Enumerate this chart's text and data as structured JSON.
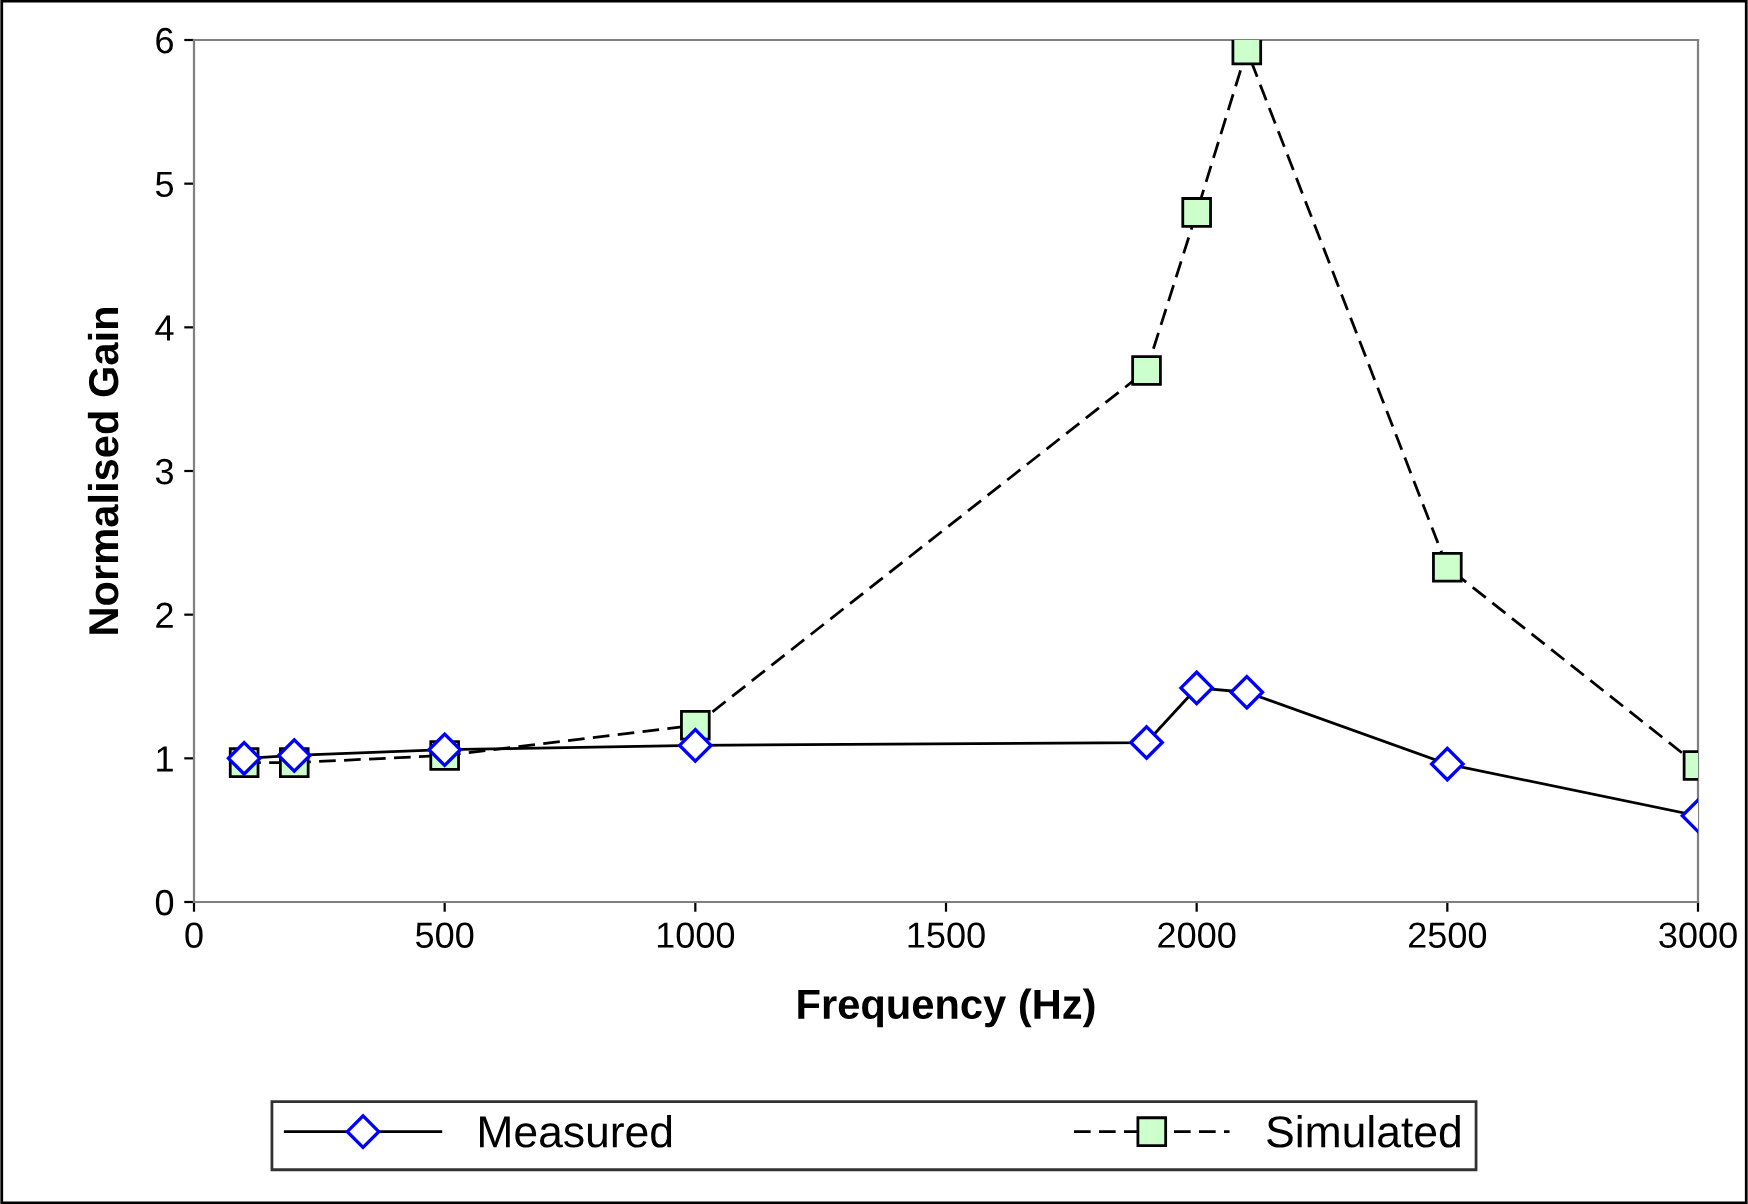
{
  "chart_data": {
    "type": "line",
    "xlabel": "Frequency (Hz)",
    "ylabel": "Normalised Gain",
    "xlim": [
      0,
      3000
    ],
    "xticks": [
      0,
      500,
      1000,
      1500,
      2000,
      2500,
      3000
    ],
    "ylim": [
      0,
      6
    ],
    "yticks": [
      0,
      1,
      2,
      3,
      4,
      5,
      6
    ],
    "grid": false,
    "legend": "bottom",
    "series": [
      {
        "name": "Measured",
        "color": "#0000ff",
        "marker": "diamond",
        "line_style": "solid",
        "x": [
          100,
          200,
          500,
          1000,
          1900,
          2000,
          2100,
          2500,
          3000
        ],
        "values": [
          1.0,
          1.02,
          1.06,
          1.09,
          1.11,
          1.49,
          1.46,
          0.96,
          0.6
        ]
      },
      {
        "name": "Simulated",
        "color": "#ccffcc",
        "marker": "square",
        "line_style": "dashed",
        "x": [
          100,
          200,
          500,
          1000,
          1900,
          2000,
          2100,
          2500,
          3000
        ],
        "values": [
          0.97,
          0.97,
          1.02,
          1.23,
          3.7,
          4.8,
          5.93,
          2.33,
          0.95
        ]
      }
    ]
  }
}
